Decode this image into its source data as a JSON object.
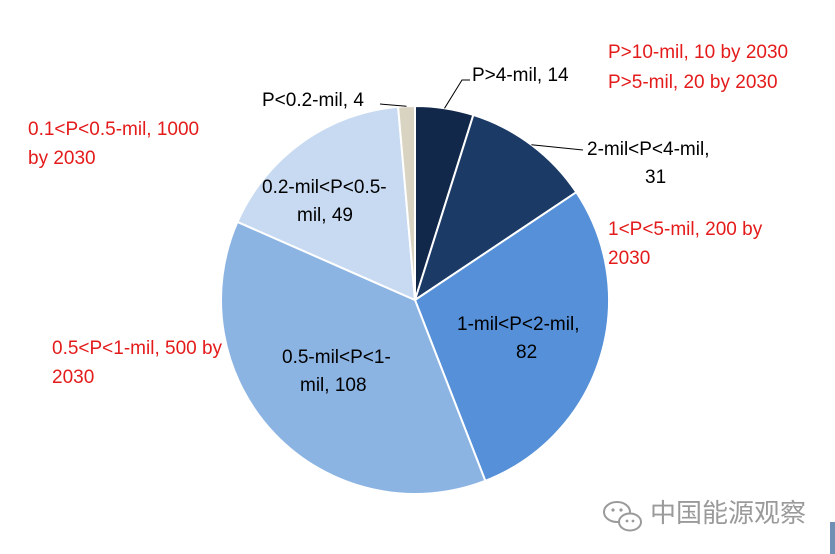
{
  "chart_data": {
    "type": "pie",
    "title": "",
    "slices": [
      {
        "label": "P>4-mil, 14",
        "value": 14,
        "color": "#12284a"
      },
      {
        "label": "2-mil<P<4-mil, 31",
        "value": 31,
        "color": "#1b3a66"
      },
      {
        "label": "1-mil<P<2-mil, 82",
        "value": 82,
        "color": "#5590d8"
      },
      {
        "label": "0.5-mil<P<1-mil, 108",
        "value": 108,
        "color": "#8cb4e3"
      },
      {
        "label": "0.2-mil<P<0.5-mil, 49",
        "value": 49,
        "color": "#c7daf2"
      },
      {
        "label": "P<0.2-mil, 4",
        "value": 4,
        "color": "#d9d3c2"
      }
    ],
    "annotations": [
      "P>10-mil, 10 by 2030",
      "P>5-mil, 20 by 2030",
      "1<P<5-mil, 200 by 2030",
      "0.5<P<1-mil, 500 by 2030",
      "0.1<P<0.5-mil, 1000 by 2030"
    ]
  },
  "watermark": {
    "text": "中国能源观察",
    "icon": "wechat-icon"
  }
}
